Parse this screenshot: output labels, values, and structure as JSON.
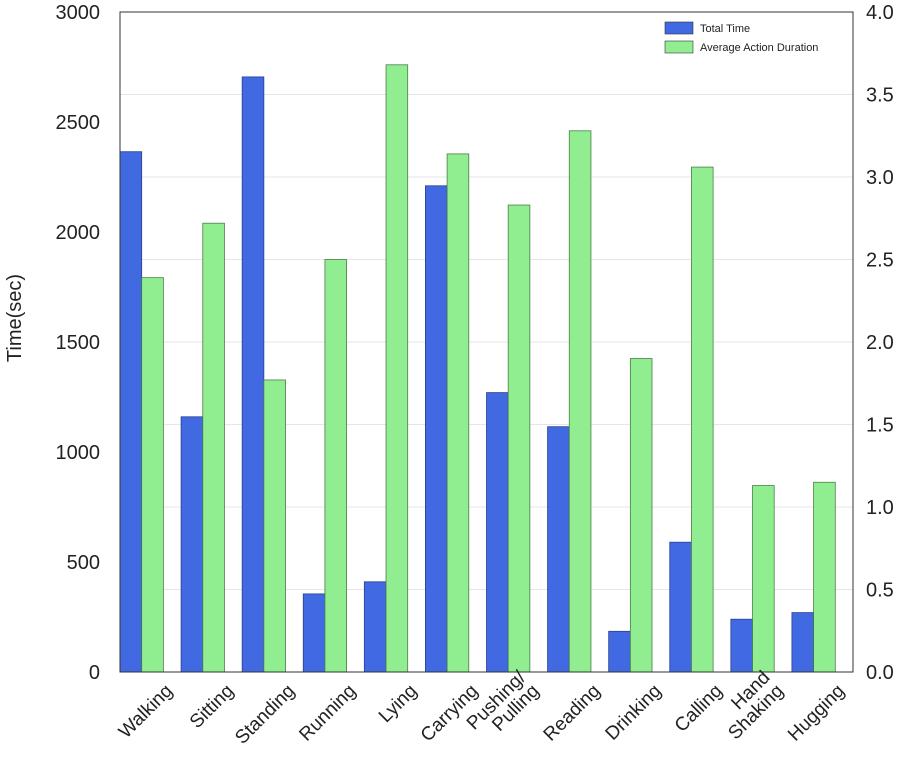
{
  "chart_data": {
    "type": "bar",
    "title": "",
    "xlabel": "",
    "ylabel": "Time(sec)",
    "ylim": [
      0,
      3000
    ],
    "y2lim": [
      0,
      4.0
    ],
    "yticks": [
      "0",
      "500",
      "1000",
      "1500",
      "2000",
      "2500",
      "3000"
    ],
    "y2ticks": [
      "0.0",
      "0.5",
      "1.0",
      "1.5",
      "2.0",
      "2.5",
      "3.0",
      "3.5",
      "4.0"
    ],
    "grid": true,
    "legend_position": "top-right",
    "categories": [
      [
        "Walking"
      ],
      [
        "Sitting"
      ],
      [
        "Standing"
      ],
      [
        "Running"
      ],
      [
        "Lying"
      ],
      [
        "Carrying"
      ],
      [
        "Pushing/",
        "Pulling"
      ],
      [
        "Reading"
      ],
      [
        "Drinking"
      ],
      [
        "Calling"
      ],
      [
        "Hand",
        "Shaking"
      ],
      [
        "Hugging"
      ]
    ],
    "series": [
      {
        "name": "Total Time",
        "axis": "left",
        "color": "#4169e1",
        "values": [
          2365,
          1160,
          2705,
          355,
          410,
          2210,
          1270,
          1115,
          185,
          590,
          240,
          270
        ]
      },
      {
        "name": "Average Action Duration",
        "axis": "right",
        "color": "#90ee90",
        "values": [
          2.39,
          2.72,
          1.77,
          2.5,
          3.68,
          3.14,
          2.83,
          3.28,
          1.9,
          3.06,
          1.13,
          1.15
        ]
      }
    ]
  }
}
